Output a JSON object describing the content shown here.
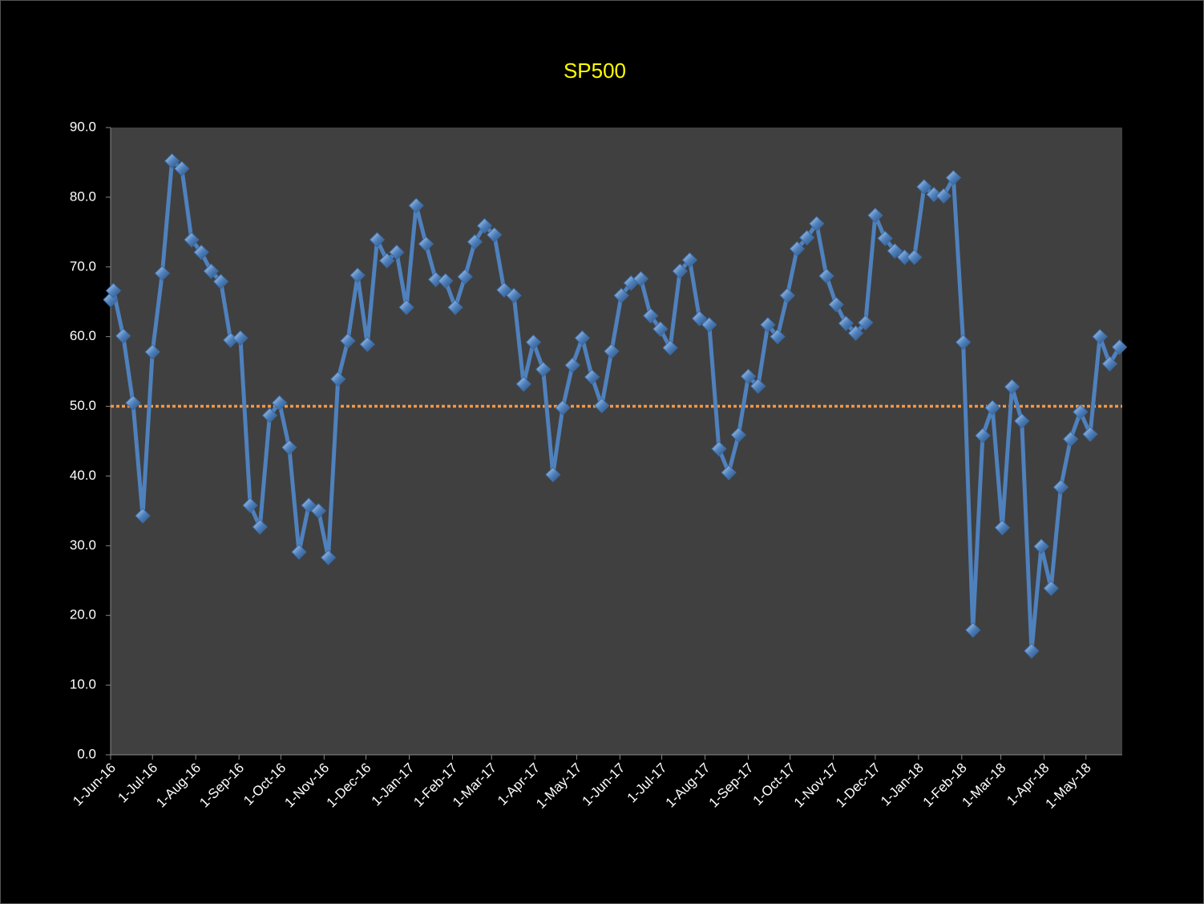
{
  "chart_data": {
    "type": "line",
    "title": "SP500",
    "x": [
      "2016-06-01",
      "2016-06-03",
      "2016-06-10",
      "2016-06-17",
      "2016-06-24",
      "2016-07-01",
      "2016-07-08",
      "2016-07-15",
      "2016-07-22",
      "2016-07-29",
      "2016-08-05",
      "2016-08-12",
      "2016-08-19",
      "2016-08-26",
      "2016-09-02",
      "2016-09-09",
      "2016-09-16",
      "2016-09-23",
      "2016-09-30",
      "2016-10-07",
      "2016-10-14",
      "2016-10-21",
      "2016-10-28",
      "2016-11-04",
      "2016-11-11",
      "2016-11-18",
      "2016-11-25",
      "2016-12-02",
      "2016-12-09",
      "2016-12-16",
      "2016-12-23",
      "2016-12-30",
      "2017-01-06",
      "2017-01-13",
      "2017-01-20",
      "2017-01-27",
      "2017-02-03",
      "2017-02-10",
      "2017-02-17",
      "2017-02-24",
      "2017-03-03",
      "2017-03-10",
      "2017-03-17",
      "2017-03-24",
      "2017-03-31",
      "2017-04-07",
      "2017-04-14",
      "2017-04-21",
      "2017-04-28",
      "2017-05-05",
      "2017-05-12",
      "2017-05-19",
      "2017-05-26",
      "2017-06-02",
      "2017-06-09",
      "2017-06-16",
      "2017-06-23",
      "2017-06-30",
      "2017-07-07",
      "2017-07-14",
      "2017-07-21",
      "2017-07-28",
      "2017-08-04",
      "2017-08-11",
      "2017-08-18",
      "2017-08-25",
      "2017-09-01",
      "2017-09-08",
      "2017-09-15",
      "2017-09-22",
      "2017-09-29",
      "2017-10-06",
      "2017-10-13",
      "2017-10-20",
      "2017-10-27",
      "2017-11-03",
      "2017-11-10",
      "2017-11-17",
      "2017-11-24",
      "2017-12-01",
      "2017-12-08",
      "2017-12-15",
      "2017-12-22",
      "2017-12-29",
      "2018-01-05",
      "2018-01-12",
      "2018-01-19",
      "2018-01-26",
      "2018-02-02",
      "2018-02-09",
      "2018-02-16",
      "2018-02-23",
      "2018-03-02",
      "2018-03-09",
      "2018-03-16",
      "2018-03-23",
      "2018-03-30",
      "2018-04-06",
      "2018-04-13",
      "2018-04-20",
      "2018-04-27",
      "2018-05-04",
      "2018-05-11",
      "2018-05-18",
      "2018-05-25"
    ],
    "values": [
      65.3,
      66.6,
      60.1,
      50.5,
      34.3,
      57.8,
      69.1,
      85.2,
      84.1,
      73.9,
      72.1,
      69.4,
      67.9,
      59.5,
      59.8,
      35.8,
      32.7,
      48.7,
      50.5,
      44.1,
      29.1,
      35.8,
      35.0,
      28.3,
      53.9,
      59.4,
      68.8,
      58.9,
      73.9,
      70.9,
      72.1,
      64.2,
      78.8,
      73.3,
      68.2,
      68.0,
      64.2,
      68.6,
      73.6,
      75.9,
      74.6,
      66.7,
      65.9,
      53.2,
      59.2,
      55.3,
      40.2,
      49.8,
      55.9,
      59.8,
      54.2,
      50.1,
      57.9,
      65.9,
      67.7,
      68.3,
      63.0,
      61.1,
      58.4,
      69.4,
      71.0,
      62.6,
      61.7,
      43.9,
      40.5,
      45.9,
      54.3,
      52.9,
      61.7,
      60.0,
      65.9,
      72.6,
      74.2,
      76.2,
      68.7,
      64.6,
      61.9,
      60.5,
      62.0,
      77.4,
      74.1,
      72.3,
      71.4,
      71.4,
      81.5,
      80.4,
      80.2,
      82.8,
      59.2,
      17.9,
      45.8,
      49.8,
      32.6,
      52.8,
      47.9,
      14.9,
      29.9,
      23.9,
      38.4,
      45.3,
      49.2,
      46.0,
      60.0,
      56.1,
      58.5
    ],
    "color": "#4f81bd",
    "xlim": [
      "2016-06-01",
      "2018-05-27"
    ],
    "xticks": [
      {
        "value": "2016-06-01",
        "label": "1-Jun-16"
      },
      {
        "value": "2016-07-01",
        "label": "1-Jul-16"
      },
      {
        "value": "2016-08-01",
        "label": "1-Aug-16"
      },
      {
        "value": "2016-09-01",
        "label": "1-Sep-16"
      },
      {
        "value": "2016-10-01",
        "label": "1-Oct-16"
      },
      {
        "value": "2016-11-01",
        "label": "1-Nov-16"
      },
      {
        "value": "2016-12-01",
        "label": "1-Dec-16"
      },
      {
        "value": "2017-01-01",
        "label": "1-Jan-17"
      },
      {
        "value": "2017-02-01",
        "label": "1-Feb-17"
      },
      {
        "value": "2017-03-01",
        "label": "1-Mar-17"
      },
      {
        "value": "2017-04-01",
        "label": "1-Apr-17"
      },
      {
        "value": "2017-05-01",
        "label": "1-May-17"
      },
      {
        "value": "2017-06-01",
        "label": "1-Jun-17"
      },
      {
        "value": "2017-07-01",
        "label": "1-Jul-17"
      },
      {
        "value": "2017-08-01",
        "label": "1-Aug-17"
      },
      {
        "value": "2017-09-01",
        "label": "1-Sep-17"
      },
      {
        "value": "2017-10-01",
        "label": "1-Oct-17"
      },
      {
        "value": "2017-11-01",
        "label": "1-Nov-17"
      },
      {
        "value": "2017-12-01",
        "label": "1-Dec-17"
      },
      {
        "value": "2018-01-01",
        "label": "1-Jan-18"
      },
      {
        "value": "2018-02-01",
        "label": "1-Feb-18"
      },
      {
        "value": "2018-03-01",
        "label": "1-Mar-18"
      },
      {
        "value": "2018-04-01",
        "label": "1-Apr-18"
      },
      {
        "value": "2018-05-01",
        "label": "1-May-18"
      }
    ],
    "ylim": [
      0,
      90
    ],
    "yticks": [
      {
        "value": 0,
        "label": "0.0"
      },
      {
        "value": 10,
        "label": "10.0"
      },
      {
        "value": 20,
        "label": "20.0"
      },
      {
        "value": 30,
        "label": "30.0"
      },
      {
        "value": 40,
        "label": "40.0"
      },
      {
        "value": 50,
        "label": "50.0"
      },
      {
        "value": 60,
        "label": "60.0"
      },
      {
        "value": 70,
        "label": "70.0"
      },
      {
        "value": 80,
        "label": "80.0"
      },
      {
        "value": 90,
        "label": "90.0"
      }
    ],
    "reference_line": {
      "value": 50,
      "color": "#f79646"
    },
    "grid": false
  }
}
